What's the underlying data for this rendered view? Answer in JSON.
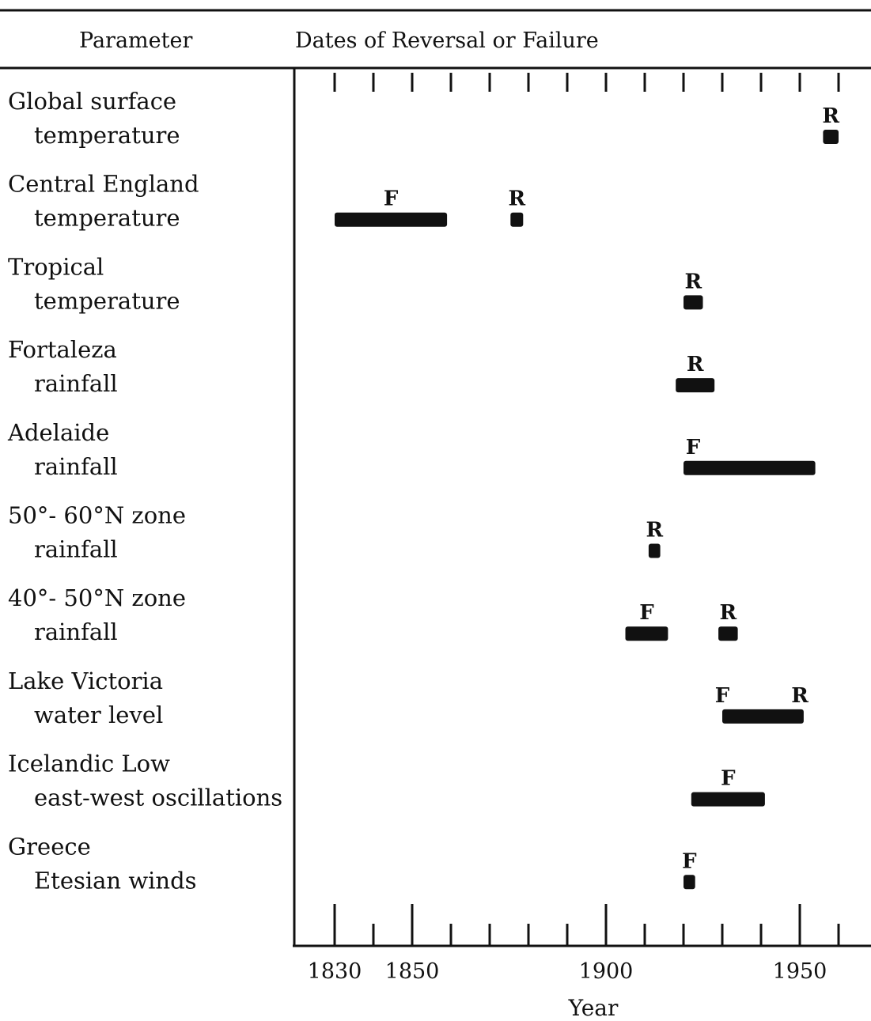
{
  "header": {
    "parameter": "Parameter",
    "dates": "Dates of Reversal or Failure"
  },
  "chart_data": {
    "type": "bar",
    "xlabel": "Year",
    "xlim": [
      1830,
      1965
    ],
    "x_tick_labels": [
      "1830",
      "1850",
      "1900",
      "1950"
    ],
    "x_ticks": [
      1830,
      1840,
      1850,
      1860,
      1870,
      1880,
      1890,
      1900,
      1910,
      1920,
      1930,
      1940,
      1950,
      1960
    ],
    "legend": "none",
    "grid": false,
    "rows": [
      {
        "line1": "Global surface",
        "line2": "temperature",
        "events": [
          {
            "type": "R",
            "start": 1956,
            "end": 1960
          }
        ]
      },
      {
        "line1": "Central England",
        "line2": "temperature",
        "events": [
          {
            "type": "F",
            "start": 1830,
            "end": 1859
          },
          {
            "type": "R",
            "start": 1876,
            "end": 1878
          }
        ]
      },
      {
        "line1": "Tropical",
        "line2": "temperature",
        "events": [
          {
            "type": "R",
            "start": 1920,
            "end": 1925
          }
        ]
      },
      {
        "line1": "Fortaleza",
        "line2": "rainfall",
        "events": [
          {
            "type": "R",
            "start": 1918,
            "end": 1928
          }
        ]
      },
      {
        "line1": "Adelaide",
        "line2": "rainfall",
        "events": [
          {
            "type": "F",
            "start": 1920,
            "end": 1954
          }
        ]
      },
      {
        "line1": "50°- 60°N zone",
        "line2": "rainfall",
        "events": [
          {
            "type": "R",
            "start": 1911,
            "end": 1914
          }
        ]
      },
      {
        "line1": "40°- 50°N zone",
        "line2": "rainfall",
        "events": [
          {
            "type": "F",
            "start": 1905,
            "end": 1916
          },
          {
            "type": "R",
            "start": 1929,
            "end": 1934
          }
        ]
      },
      {
        "line1": "Lake Victoria",
        "line2": "water level",
        "events": [
          {
            "type": "F",
            "start": 1930,
            "end": 1930
          },
          {
            "type": "R",
            "start": 1950,
            "end": 1950
          }
        ],
        "span": {
          "start": 1930,
          "end": 1951
        }
      },
      {
        "line1": "Icelandic Low",
        "line2": "east-west oscillations",
        "events": [
          {
            "type": "F",
            "start": 1922,
            "end": 1941
          }
        ]
      },
      {
        "line1": "Greece",
        "line2": "Etesian winds",
        "events": [
          {
            "type": "F",
            "start": 1920,
            "end": 1923
          }
        ]
      }
    ]
  }
}
